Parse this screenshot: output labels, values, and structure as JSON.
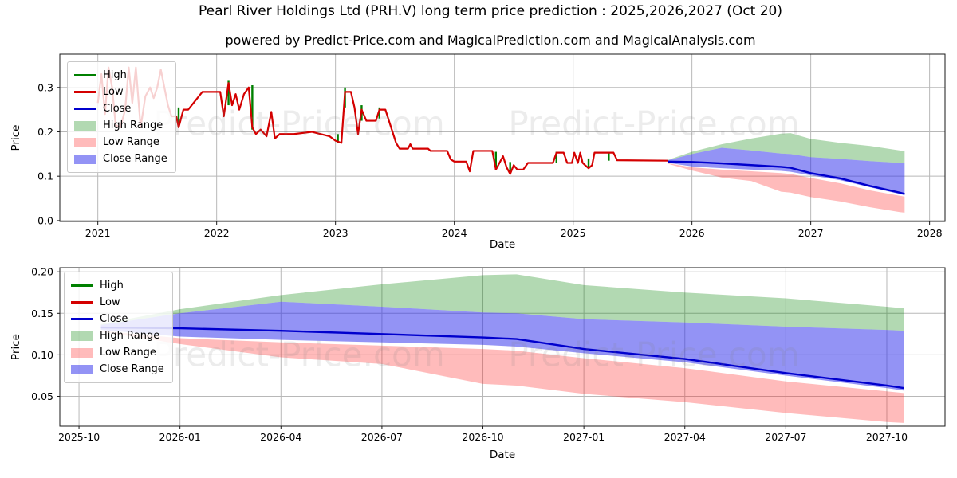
{
  "header": {
    "title": "Pearl River Holdings Ltd (PRH.V) long term price prediction : 2025,2026,2027 (Oct 20)",
    "subtitle": "powered by Predict-Price.com and MagicalPrediction.com and MagicalAnalysis.com"
  },
  "watermark_text": "Predict-Price.com",
  "colors": {
    "high": "#008000",
    "low": "#d40000",
    "close": "#0000cd",
    "high_range": "rgba(0,128,0,0.30)",
    "low_range": "rgba(255,30,30,0.30)",
    "close_range": "rgba(40,40,235,0.50)",
    "grid": "#b8b8b8",
    "spine": "#1a1a1a",
    "watermark": "rgba(128,128,128,0.15)",
    "text": "#000000"
  },
  "legend_items": [
    {
      "label": "High",
      "swatch": "line",
      "color_key": "high"
    },
    {
      "label": "Low",
      "swatch": "line",
      "color_key": "low"
    },
    {
      "label": "Close",
      "swatch": "line",
      "color_key": "close"
    },
    {
      "label": "High Range",
      "swatch": "patch",
      "color_key": "high_range"
    },
    {
      "label": "Low Range",
      "swatch": "patch",
      "color_key": "low_range"
    },
    {
      "label": "Close Range",
      "swatch": "patch",
      "color_key": "close_range"
    }
  ],
  "chart_data": [
    {
      "id": "history-with-forecast",
      "type": "line",
      "xlabel": "Date",
      "ylabel": "Price",
      "xlim": [
        2020.68,
        2028.13
      ],
      "ylim": [
        -0.002,
        0.375
      ],
      "grid": true,
      "legend_position": "upper-left",
      "xticks": [
        {
          "v": 2021,
          "label": "2021"
        },
        {
          "v": 2022,
          "label": "2022"
        },
        {
          "v": 2023,
          "label": "2023"
        },
        {
          "v": 2024,
          "label": "2024"
        },
        {
          "v": 2025,
          "label": "2025"
        },
        {
          "v": 2026,
          "label": "2026"
        },
        {
          "v": 2027,
          "label": "2027"
        },
        {
          "v": 2028,
          "label": "2028"
        }
      ],
      "yticks": [
        {
          "v": 0.0,
          "label": "0.0"
        },
        {
          "v": 0.1,
          "label": "0.1"
        },
        {
          "v": 0.2,
          "label": "0.2"
        },
        {
          "v": 0.3,
          "label": "0.3"
        }
      ],
      "series": {
        "low_line": [
          [
            2021.0,
            0.265
          ],
          [
            2021.03,
            0.33
          ],
          [
            2021.06,
            0.24
          ],
          [
            2021.09,
            0.345
          ],
          [
            2021.12,
            0.3
          ],
          [
            2021.15,
            0.215
          ],
          [
            2021.19,
            0.21
          ],
          [
            2021.23,
            0.25
          ],
          [
            2021.26,
            0.345
          ],
          [
            2021.29,
            0.265
          ],
          [
            2021.32,
            0.345
          ],
          [
            2021.36,
            0.21
          ],
          [
            2021.4,
            0.28
          ],
          [
            2021.44,
            0.3
          ],
          [
            2021.47,
            0.276
          ],
          [
            2021.5,
            0.3
          ],
          [
            2021.53,
            0.34
          ],
          [
            2021.56,
            0.3
          ],
          [
            2021.59,
            0.26
          ],
          [
            2021.62,
            0.235
          ],
          [
            2021.66,
            0.235
          ],
          [
            2021.68,
            0.21
          ],
          [
            2021.72,
            0.25
          ],
          [
            2021.76,
            0.25
          ],
          [
            2021.88,
            0.29
          ],
          [
            2022.03,
            0.29
          ],
          [
            2022.06,
            0.235
          ],
          [
            2022.1,
            0.31
          ],
          [
            2022.13,
            0.26
          ],
          [
            2022.16,
            0.285
          ],
          [
            2022.19,
            0.25
          ],
          [
            2022.23,
            0.285
          ],
          [
            2022.27,
            0.3
          ],
          [
            2022.3,
            0.21
          ],
          [
            2022.33,
            0.195
          ],
          [
            2022.37,
            0.205
          ],
          [
            2022.42,
            0.19
          ],
          [
            2022.46,
            0.245
          ],
          [
            2022.49,
            0.185
          ],
          [
            2022.53,
            0.195
          ],
          [
            2022.65,
            0.195
          ],
          [
            2022.8,
            0.2
          ],
          [
            2022.95,
            0.19
          ],
          [
            2023.0,
            0.18
          ],
          [
            2023.05,
            0.175
          ],
          [
            2023.08,
            0.29
          ],
          [
            2023.13,
            0.29
          ],
          [
            2023.16,
            0.255
          ],
          [
            2023.19,
            0.195
          ],
          [
            2023.22,
            0.25
          ],
          [
            2023.26,
            0.225
          ],
          [
            2023.34,
            0.225
          ],
          [
            2023.37,
            0.25
          ],
          [
            2023.42,
            0.25
          ],
          [
            2023.45,
            0.225
          ],
          [
            2023.48,
            0.2
          ],
          [
            2023.51,
            0.175
          ],
          [
            2023.54,
            0.162
          ],
          [
            2023.61,
            0.162
          ],
          [
            2023.63,
            0.172
          ],
          [
            2023.65,
            0.162
          ],
          [
            2023.78,
            0.162
          ],
          [
            2023.8,
            0.157
          ],
          [
            2023.94,
            0.157
          ],
          [
            2023.97,
            0.138
          ],
          [
            2024.0,
            0.133
          ],
          [
            2024.1,
            0.133
          ],
          [
            2024.13,
            0.111
          ],
          [
            2024.16,
            0.157
          ],
          [
            2024.32,
            0.157
          ],
          [
            2024.35,
            0.115
          ],
          [
            2024.38,
            0.13
          ],
          [
            2024.41,
            0.145
          ],
          [
            2024.44,
            0.12
          ],
          [
            2024.47,
            0.105
          ],
          [
            2024.5,
            0.125
          ],
          [
            2024.53,
            0.115
          ],
          [
            2024.58,
            0.115
          ],
          [
            2024.62,
            0.13
          ],
          [
            2024.83,
            0.13
          ],
          [
            2024.86,
            0.153
          ],
          [
            2024.92,
            0.153
          ],
          [
            2024.95,
            0.13
          ],
          [
            2024.99,
            0.13
          ],
          [
            2025.01,
            0.153
          ],
          [
            2025.04,
            0.13
          ],
          [
            2025.06,
            0.153
          ],
          [
            2025.08,
            0.13
          ],
          [
            2025.1,
            0.125
          ],
          [
            2025.13,
            0.118
          ],
          [
            2025.16,
            0.125
          ],
          [
            2025.18,
            0.153
          ],
          [
            2025.34,
            0.153
          ],
          [
            2025.37,
            0.136
          ],
          [
            2025.8,
            0.135
          ]
        ],
        "high_spikes": [
          {
            "x": 2021.68,
            "lo": 0.21,
            "hi": 0.255
          },
          {
            "x": 2022.1,
            "lo": 0.26,
            "hi": 0.315
          },
          {
            "x": 2022.3,
            "lo": 0.205,
            "hi": 0.305
          },
          {
            "x": 2023.02,
            "lo": 0.175,
            "hi": 0.195
          },
          {
            "x": 2023.08,
            "lo": 0.255,
            "hi": 0.3
          },
          {
            "x": 2023.22,
            "lo": 0.225,
            "hi": 0.26
          },
          {
            "x": 2023.37,
            "lo": 0.23,
            "hi": 0.255
          },
          {
            "x": 2024.35,
            "lo": 0.115,
            "hi": 0.155
          },
          {
            "x": 2024.47,
            "lo": 0.105,
            "hi": 0.132
          },
          {
            "x": 2024.86,
            "lo": 0.13,
            "hi": 0.155
          },
          {
            "x": 2025.13,
            "lo": 0.118,
            "hi": 0.14
          },
          {
            "x": 2025.3,
            "lo": 0.135,
            "hi": 0.155
          }
        ],
        "fan": {
          "x": [
            2025.8,
            2026.0,
            2026.25,
            2026.5,
            2026.75,
            2026.83,
            2027.0,
            2027.25,
            2027.5,
            2027.75,
            2027.79
          ],
          "high_upper": [
            0.137,
            0.155,
            0.172,
            0.185,
            0.196,
            0.197,
            0.184,
            0.175,
            0.168,
            0.158,
            0.156
          ],
          "close_upper": [
            0.136,
            0.15,
            0.164,
            0.158,
            0.151,
            0.15,
            0.143,
            0.139,
            0.134,
            0.13,
            0.129
          ],
          "close": [
            0.133,
            0.132,
            0.129,
            0.125,
            0.121,
            0.119,
            0.107,
            0.095,
            0.078,
            0.063,
            0.06
          ],
          "close_lower": [
            0.13,
            0.122,
            0.118,
            0.115,
            0.112,
            0.11,
            0.102,
            0.091,
            0.075,
            0.06,
            0.057
          ],
          "low_upper": [
            0.129,
            0.12,
            0.115,
            0.111,
            0.107,
            0.105,
            0.096,
            0.084,
            0.068,
            0.056,
            0.054
          ],
          "low_lower": [
            0.128,
            0.113,
            0.097,
            0.089,
            0.065,
            0.063,
            0.053,
            0.043,
            0.03,
            0.019,
            0.018
          ]
        }
      }
    },
    {
      "id": "forecast-detail",
      "type": "line",
      "xlabel": "Date",
      "ylabel": "Price",
      "xlim": [
        -0.57,
        25.73
      ],
      "ylim": [
        0.014,
        0.205
      ],
      "grid": true,
      "legend_position": "upper-left",
      "xticks": [
        {
          "v": 0,
          "label": "2025-10"
        },
        {
          "v": 3,
          "label": "2026-01"
        },
        {
          "v": 6,
          "label": "2026-04"
        },
        {
          "v": 9,
          "label": "2026-07"
        },
        {
          "v": 12,
          "label": "2026-10"
        },
        {
          "v": 15,
          "label": "2027-01"
        },
        {
          "v": 18,
          "label": "2027-04"
        },
        {
          "v": 21,
          "label": "2027-07"
        },
        {
          "v": 24,
          "label": "2027-10"
        }
      ],
      "yticks": [
        {
          "v": 0.05,
          "label": "0.05"
        },
        {
          "v": 0.1,
          "label": "0.10"
        },
        {
          "v": 0.15,
          "label": "0.15"
        },
        {
          "v": 0.2,
          "label": "0.20"
        }
      ],
      "series": {
        "fan": {
          "x": [
            0.65,
            3,
            6,
            9,
            12,
            13,
            15,
            18,
            21,
            24,
            24.5
          ],
          "high_upper": [
            0.137,
            0.155,
            0.172,
            0.185,
            0.196,
            0.197,
            0.184,
            0.175,
            0.168,
            0.158,
            0.156
          ],
          "close_upper": [
            0.136,
            0.15,
            0.164,
            0.158,
            0.151,
            0.15,
            0.143,
            0.139,
            0.134,
            0.13,
            0.129
          ],
          "close": [
            0.133,
            0.132,
            0.129,
            0.125,
            0.121,
            0.119,
            0.107,
            0.095,
            0.078,
            0.063,
            0.06
          ],
          "close_lower": [
            0.13,
            0.122,
            0.118,
            0.115,
            0.112,
            0.11,
            0.102,
            0.091,
            0.075,
            0.06,
            0.057
          ],
          "low_upper": [
            0.129,
            0.12,
            0.115,
            0.111,
            0.107,
            0.105,
            0.096,
            0.084,
            0.068,
            0.056,
            0.054
          ],
          "low_lower": [
            0.128,
            0.113,
            0.097,
            0.089,
            0.065,
            0.063,
            0.053,
            0.043,
            0.03,
            0.019,
            0.018
          ]
        }
      }
    }
  ]
}
